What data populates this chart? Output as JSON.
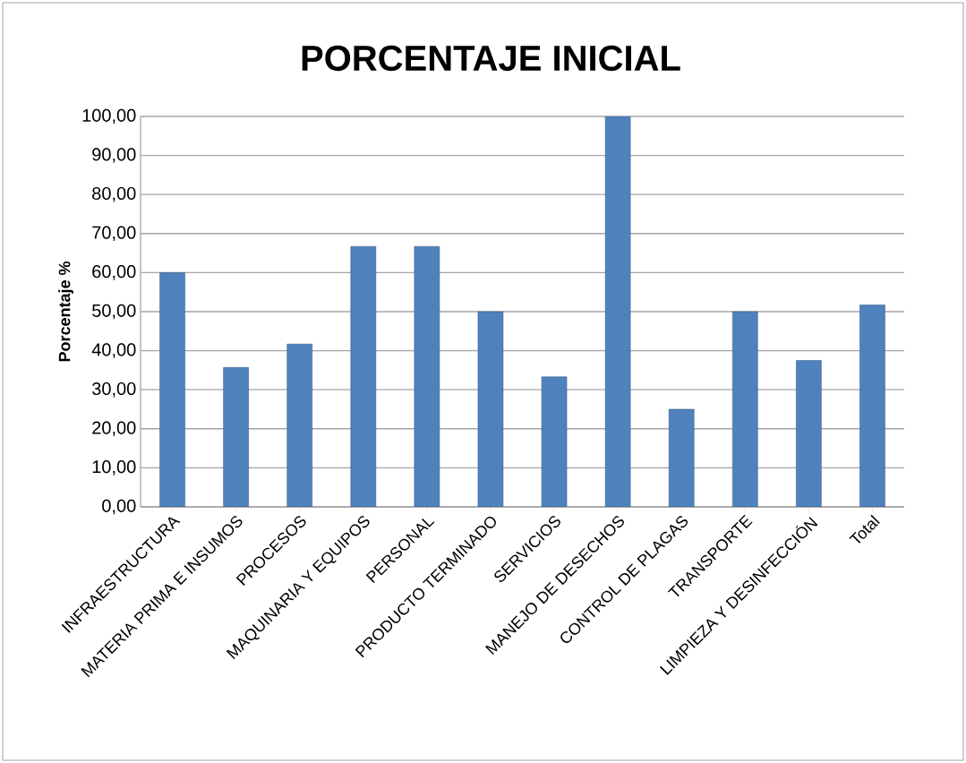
{
  "chart_data": {
    "type": "bar",
    "title": "PORCENTAJE INICIAL",
    "ylabel": "Porcentaje %",
    "categories": [
      "INFRAESTRUCTURA",
      "MATERIA PRIMA E INSUMOS",
      "PROCESOS",
      "MAQUINARIA Y EQUIPOS",
      "PERSONAL",
      "PRODUCTO TERMINADO",
      "SERVICIOS",
      "MANEJO DE DESECHOS",
      "CONTROL DE PLAGAS",
      "TRANSPORTE",
      "LIMPIEZA Y DESINFECCIÓN",
      "Total"
    ],
    "values": [
      60,
      35.7,
      41.7,
      66.7,
      66.7,
      50,
      33.3,
      100,
      25,
      50,
      37.5,
      51.7
    ],
    "color": "#4f81bd",
    "ylim": [
      0,
      100
    ],
    "yticks": [
      {
        "value": 0,
        "label": "0,00"
      },
      {
        "value": 10,
        "label": "10,00"
      },
      {
        "value": 20,
        "label": "20,00"
      },
      {
        "value": 30,
        "label": "30,00"
      },
      {
        "value": 40,
        "label": "40,00"
      },
      {
        "value": 50,
        "label": "50,00"
      },
      {
        "value": 60,
        "label": "60,00"
      },
      {
        "value": 70,
        "label": "70,00"
      },
      {
        "value": 80,
        "label": "80,00"
      },
      {
        "value": 90,
        "label": "90,00"
      },
      {
        "value": 100,
        "label": "100,00"
      }
    ],
    "grid": true
  }
}
